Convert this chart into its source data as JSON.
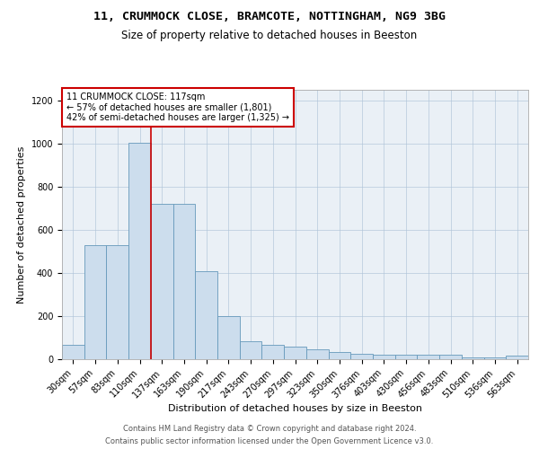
{
  "title1": "11, CRUMMOCK CLOSE, BRAMCOTE, NOTTINGHAM, NG9 3BG",
  "title2": "Size of property relative to detached houses in Beeston",
  "xlabel": "Distribution of detached houses by size in Beeston",
  "ylabel": "Number of detached properties",
  "categories": [
    "30sqm",
    "57sqm",
    "83sqm",
    "110sqm",
    "137sqm",
    "163sqm",
    "190sqm",
    "217sqm",
    "243sqm",
    "270sqm",
    "297sqm",
    "323sqm",
    "350sqm",
    "376sqm",
    "403sqm",
    "430sqm",
    "456sqm",
    "483sqm",
    "510sqm",
    "536sqm",
    "563sqm"
  ],
  "values": [
    65,
    530,
    530,
    1005,
    720,
    720,
    410,
    200,
    85,
    65,
    60,
    45,
    35,
    25,
    20,
    20,
    20,
    20,
    10,
    10,
    15
  ],
  "bar_color": "#ccdded",
  "bar_edge_color": "#6699bb",
  "annotation_text": "11 CRUMMOCK CLOSE: 117sqm\n← 57% of detached houses are smaller (1,801)\n42% of semi-detached houses are larger (1,325) →",
  "property_line_x": 3.5,
  "annotation_box_color": "#ffffff",
  "annotation_box_edge_color": "#cc0000",
  "red_line_color": "#cc0000",
  "footnote1": "Contains HM Land Registry data © Crown copyright and database right 2024.",
  "footnote2": "Contains public sector information licensed under the Open Government Licence v3.0.",
  "background_color": "#eaf0f6",
  "ylim": [
    0,
    1250
  ],
  "title1_fontsize": 9.5,
  "title2_fontsize": 8.5,
  "xlabel_fontsize": 8,
  "ylabel_fontsize": 8,
  "tick_fontsize": 7,
  "annotation_fontsize": 7,
  "footnote_fontsize": 6
}
